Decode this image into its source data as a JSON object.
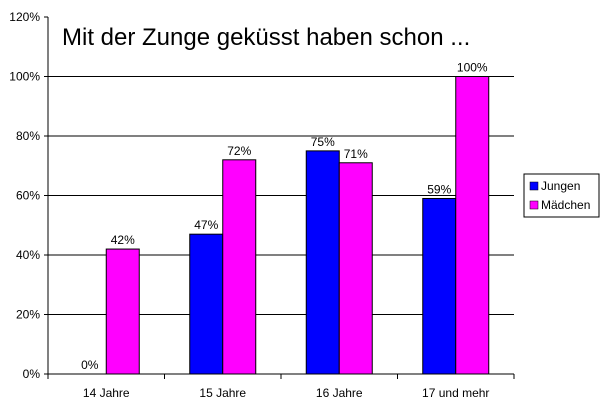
{
  "chart_data": {
    "type": "bar",
    "title": "Mit der Zunge geküsst haben schon ...",
    "categories": [
      "14 Jahre",
      "15 Jahre",
      "16 Jahre",
      "17 und mehr"
    ],
    "series": [
      {
        "name": "Jungen",
        "color": "#0000ff",
        "values": [
          0,
          47,
          75,
          59
        ],
        "labels": [
          "0%",
          "47%",
          "75%",
          "59%"
        ]
      },
      {
        "name": "Mädchen",
        "color": "#ff00ff",
        "values": [
          42,
          72,
          71,
          100
        ],
        "labels": [
          "42%",
          "72%",
          "71%",
          "100%"
        ]
      }
    ],
    "yticks": [
      "0%",
      "20%",
      "40%",
      "60%",
      "80%",
      "100%",
      "120%"
    ],
    "ylim": [
      0,
      120
    ],
    "grid": true,
    "legend": "right"
  }
}
